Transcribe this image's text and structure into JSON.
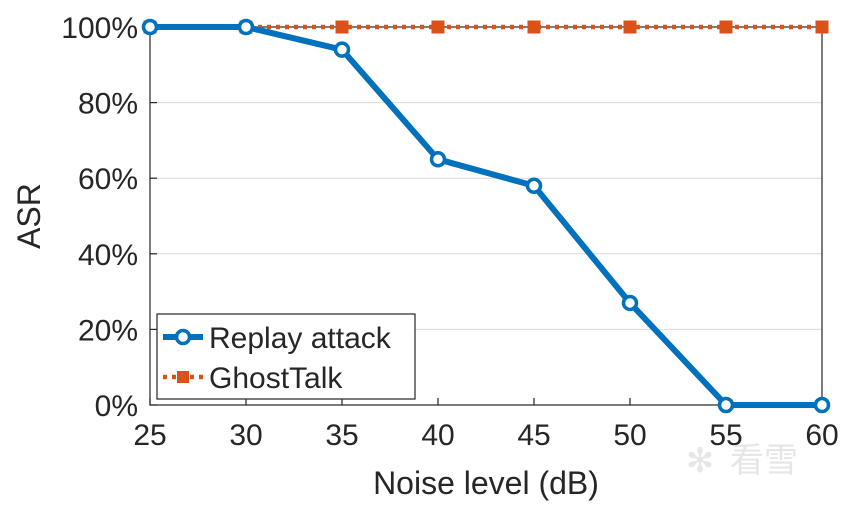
{
  "chart_data": {
    "type": "line",
    "x": [
      25,
      30,
      35,
      40,
      45,
      50,
      55,
      60
    ],
    "xlabel": "Noise level (dB)",
    "ylabel": "ASR",
    "xlim": [
      25,
      60
    ],
    "ylim": [
      0,
      100
    ],
    "x_ticks": [
      "25",
      "30",
      "35",
      "40",
      "45",
      "50",
      "55",
      "60"
    ],
    "y_ticks": [
      "0%",
      "20%",
      "40%",
      "60%",
      "80%",
      "100%"
    ],
    "y_tick_values": [
      0,
      20,
      40,
      60,
      80,
      100
    ],
    "grid": "horizontal",
    "legend_position": "bottom-left",
    "series": [
      {
        "name": "Replay attack",
        "values": [
          100,
          100,
          94,
          65,
          58,
          27,
          0,
          0
        ],
        "color": "#0072BD",
        "marker": "circle",
        "line": "solid"
      },
      {
        "name": "GhostTalk",
        "values": [
          100,
          100,
          100,
          100,
          100,
          100,
          100,
          100
        ],
        "color": "#D95319",
        "marker": "square",
        "line": "dotted"
      }
    ]
  },
  "watermark": "看雪"
}
